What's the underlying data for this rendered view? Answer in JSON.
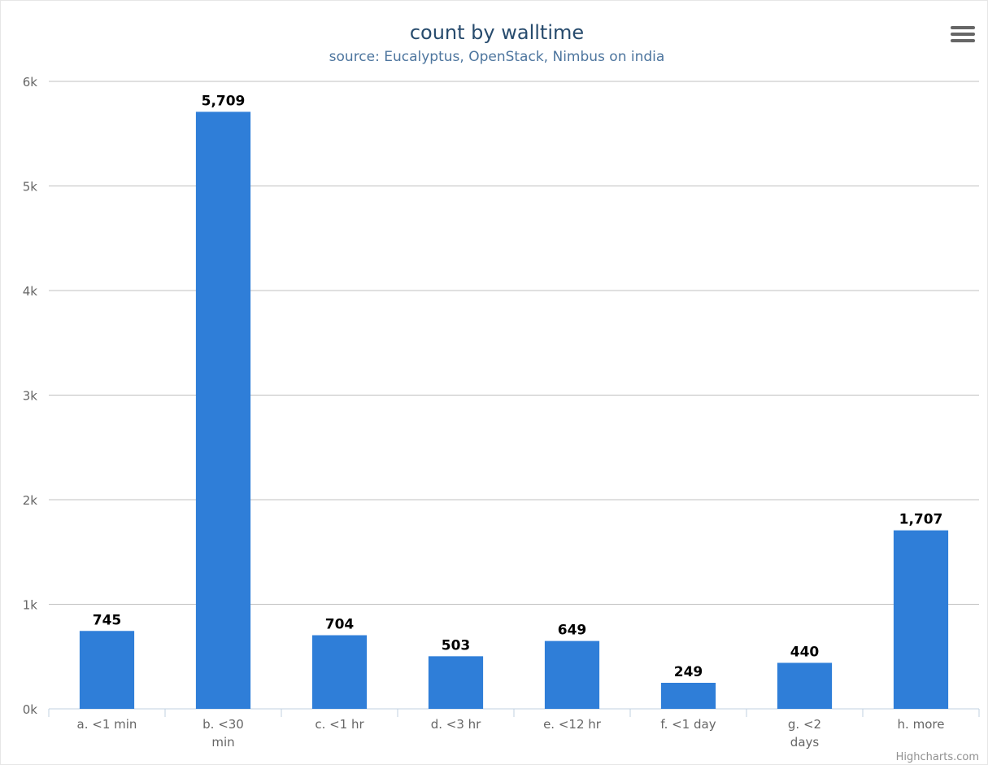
{
  "chart_data": {
    "type": "bar",
    "title": "count by walltime",
    "subtitle": "source: Eucalyptus, OpenStack, Nimbus on india",
    "categories": [
      [
        "a. <1 min"
      ],
      [
        "b. <30",
        "min"
      ],
      [
        "c. <1 hr"
      ],
      [
        "d. <3 hr"
      ],
      [
        "e. <12 hr"
      ],
      [
        "f. <1 day"
      ],
      [
        "g. <2",
        "days"
      ],
      [
        "h. more"
      ]
    ],
    "values": [
      745,
      5709,
      704,
      503,
      649,
      249,
      440,
      1707
    ],
    "data_labels": [
      "745",
      "5,709",
      "704",
      "503",
      "649",
      "249",
      "440",
      "1,707"
    ],
    "y_ticks": [
      {
        "value": 0,
        "label": "0k"
      },
      {
        "value": 1000,
        "label": "1k"
      },
      {
        "value": 2000,
        "label": "2k"
      },
      {
        "value": 3000,
        "label": "3k"
      },
      {
        "value": 4000,
        "label": "4k"
      },
      {
        "value": 5000,
        "label": "5k"
      },
      {
        "value": 6000,
        "label": "6k"
      }
    ],
    "ylim": [
      0,
      6000
    ],
    "xlabel": "",
    "ylabel": "",
    "grid": true,
    "legend": "none",
    "bar_color": "#2f7ed8",
    "title_color": "#274b6d",
    "subtitle_color": "#4d759e"
  },
  "credits": "Highcharts.com",
  "menu_icon": "hamburger-menu-icon"
}
